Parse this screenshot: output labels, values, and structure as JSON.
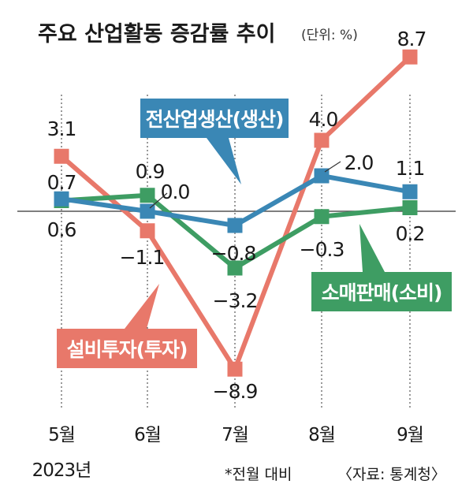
{
  "chart_data": {
    "type": "line",
    "title": "주요 산업활동 증감률 추이",
    "unit": "(단위: %)",
    "categories": [
      "5월",
      "6월",
      "7월",
      "8월",
      "9월"
    ],
    "year_label": "2023년",
    "series": [
      {
        "name": "전산업생산(생산)",
        "color": "#3a87b5",
        "values": [
          0.7,
          0.0,
          -0.8,
          2.0,
          1.1
        ],
        "labels": [
          "0.7",
          "0.0",
          "−0.8",
          "2.0",
          "1.1"
        ]
      },
      {
        "name": "설비투자(투자)",
        "color": "#e8786a",
        "values": [
          3.1,
          -1.1,
          -8.9,
          4.0,
          8.7
        ],
        "labels": [
          "3.1",
          "−1.1",
          "−8.9",
          "4.0",
          "8.7"
        ]
      },
      {
        "name": "소매판매(소비)",
        "color": "#3e9d63",
        "values": [
          0.6,
          0.9,
          -3.2,
          -0.3,
          0.2
        ],
        "labels": [
          "0.6",
          "0.9",
          "−3.2",
          "−0.3",
          "0.2"
        ]
      }
    ],
    "ylim": [
      -9.5,
      10
    ],
    "grid": false,
    "footnote": "*전월 대비",
    "source": "〈자료: 통계청〉"
  }
}
